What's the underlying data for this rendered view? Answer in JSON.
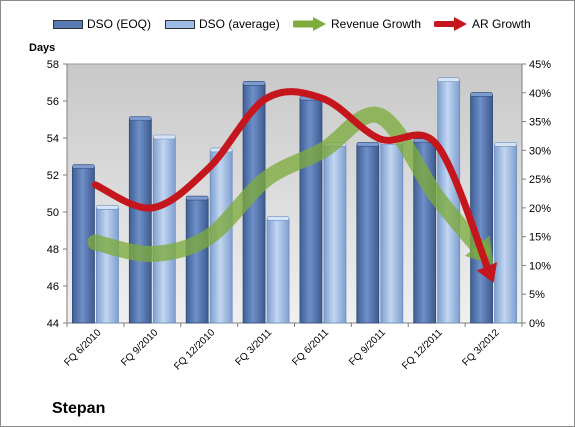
{
  "chart_data": {
    "type": "bar",
    "company": "Stepan",
    "ylabel": "Days",
    "categories": [
      "FQ 6/2010",
      "FQ 9/2010",
      "FQ 12/2010",
      "FQ 3/2011",
      "FQ 6/2011",
      "FQ 9/2011",
      "FQ 12/2011",
      "FQ 3/2012"
    ],
    "series": [
      {
        "name": "DSO (EOQ)",
        "type": "bar",
        "axis": "left",
        "color": "#5a7ab6",
        "values": [
          52.4,
          55.0,
          50.7,
          56.9,
          56.1,
          53.6,
          53.8,
          56.3
        ]
      },
      {
        "name": "DSO (average)",
        "type": "bar",
        "axis": "left",
        "color": "#9dbbe4",
        "values": [
          50.2,
          54.0,
          53.3,
          49.6,
          53.6,
          53.7,
          57.1,
          53.6
        ]
      },
      {
        "name": "Revenue Growth",
        "type": "line",
        "axis": "right",
        "color": "#7dab3c",
        "values": [
          14,
          12,
          15,
          25,
          30,
          36,
          22,
          10
        ]
      },
      {
        "name": "AR Growth",
        "type": "line",
        "axis": "right",
        "color": "#c4161c",
        "values": [
          24,
          20,
          27,
          39,
          39,
          32,
          31,
          7
        ]
      }
    ],
    "ylim": [
      44,
      58
    ],
    "yticks": [
      "44",
      "46",
      "48",
      "50",
      "52",
      "54",
      "56",
      "58"
    ],
    "y2lim": [
      0,
      45
    ],
    "y2ticks": [
      "0%",
      "5%",
      "10%",
      "15%",
      "20%",
      "25%",
      "30%",
      "35%",
      "40%",
      "45%"
    ],
    "grid": false,
    "legend": "top"
  }
}
